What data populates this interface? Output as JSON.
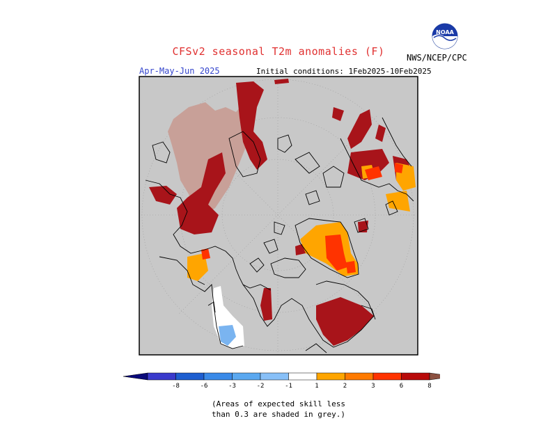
{
  "title": "CFSv2 seasonal T2m anomalies (F)",
  "period": "Apr-May-Jun 2025",
  "initial_conditions": "Initial conditions: 1Feb2025-10Feb2025",
  "agency": "NWS/NCEP/CPC",
  "logo_text": "NOAA",
  "note_line1": "(Areas of expected skill less",
  "note_line2": "than 0.3 are shaded in grey.)",
  "legend": {
    "labels": [
      "-8",
      "-6",
      "-3",
      "-2",
      "-1",
      "1",
      "2",
      "3",
      "6",
      "8"
    ],
    "colors": [
      "#0a0a7a",
      "#2244cc",
      "#1e6ee0",
      "#3a96ee",
      "#5aaaf0",
      "#88c0f8",
      "#ffffff",
      "#ffa500",
      "#ff8000",
      "#ff3300",
      "#b80a0a",
      "#b80a0a",
      "#c8a090",
      "#8b5040"
    ]
  },
  "map_colors": {
    "background": "#c8c8c8",
    "plus_3_to_6": "#a8141a",
    "plus_2_to_3": "#ff4400",
    "plus_1_to_2": "#ffa500",
    "plus_6_to_8": "#c8a098",
    "minus_1_to_2": "#7ab4f0",
    "near_zero": "#ffffff"
  }
}
